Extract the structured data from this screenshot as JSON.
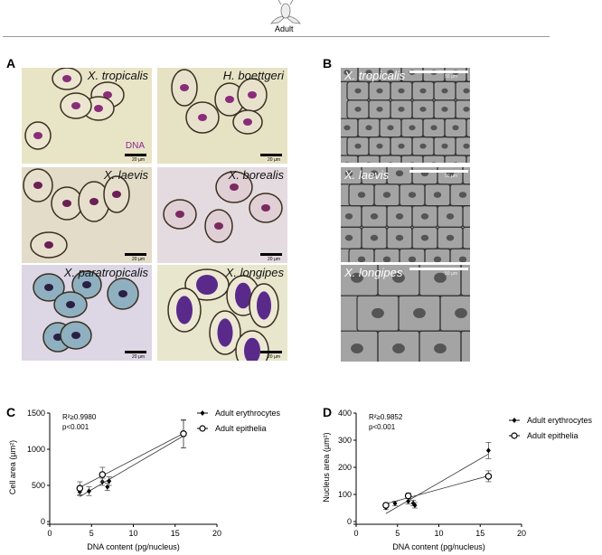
{
  "header": {
    "stage_label": "Adult",
    "icon": "frog-icon"
  },
  "panels": {
    "A": "A",
    "B": "B",
    "C": "C",
    "D": "D"
  },
  "panel_a": {
    "dna_label": "DNA",
    "dna_color": "#8b2a8f",
    "scale_bar": "20 µm",
    "images": [
      {
        "species": "X. tropicalis"
      },
      {
        "species": "H. boettgeri"
      },
      {
        "species": "X. laevis"
      },
      {
        "species": "X. borealis"
      },
      {
        "species": "X. paratropicalis"
      },
      {
        "species": "X. longipes"
      }
    ]
  },
  "panel_b": {
    "scale_bar": "50 µm",
    "images": [
      {
        "species": "X. tropicalis"
      },
      {
        "species": "X. laevis"
      },
      {
        "species": "X. longipes"
      }
    ]
  },
  "chart_data": [
    {
      "type": "scatter",
      "panel": "C",
      "xlabel": "DNA  content (pg/nucleus)",
      "ylabel": "Cell area (µm²)",
      "xlim": [
        0,
        20
      ],
      "ylim": [
        0,
        1500
      ],
      "xticks": [
        0,
        5,
        10,
        15,
        20
      ],
      "yticks": [
        0,
        500,
        1000,
        1500
      ],
      "annotations": [
        "R²≥0.9980",
        "p<0.001"
      ],
      "legend_position": "top-right",
      "grid": false,
      "series": [
        {
          "name": "Adult erythrocytes",
          "marker": "filled-diamond",
          "fit_line": true,
          "points": [
            {
              "x": 3.6,
              "y": 410,
              "err": 50
            },
            {
              "x": 4.7,
              "y": 420,
              "err": 60
            },
            {
              "x": 6.3,
              "y": 550,
              "err": 50
            },
            {
              "x": 6.9,
              "y": 480,
              "err": 50
            },
            {
              "x": 7.1,
              "y": 560,
              "err": 60
            },
            {
              "x": 16,
              "y": 1210,
              "err": 190
            }
          ]
        },
        {
          "name": "Adult epithelia",
          "marker": "open-circle",
          "fit_line": true,
          "points": [
            {
              "x": 3.6,
              "y": 460,
              "err": 90
            },
            {
              "x": 6.3,
              "y": 650,
              "err": 100
            },
            {
              "x": 16,
              "y": 1215,
              "err": 195
            }
          ]
        }
      ]
    },
    {
      "type": "scatter",
      "panel": "D",
      "xlabel": "DNA  content (pg/nucleus)",
      "ylabel": "Nucleus area (µm²)",
      "xlim": [
        0,
        20
      ],
      "ylim": [
        0,
        400
      ],
      "xticks": [
        0,
        5,
        10,
        15,
        20
      ],
      "yticks": [
        0,
        100,
        200,
        300,
        400
      ],
      "annotations": [
        "R²≥0.9852",
        "p<0.001"
      ],
      "legend_position": "top-right",
      "grid": false,
      "series": [
        {
          "name": "Adult erythrocytes",
          "marker": "filled-diamond",
          "fit_line": true,
          "points": [
            {
              "x": 3.6,
              "y": 52,
              "err": 8
            },
            {
              "x": 4.7,
              "y": 67,
              "err": 8
            },
            {
              "x": 6.3,
              "y": 75,
              "err": 10
            },
            {
              "x": 6.9,
              "y": 68,
              "err": 10
            },
            {
              "x": 7.1,
              "y": 60,
              "err": 10
            },
            {
              "x": 16,
              "y": 262,
              "err": 30
            }
          ]
        },
        {
          "name": "Adult epithelia",
          "marker": "open-circle",
          "fit_line": true,
          "points": [
            {
              "x": 3.6,
              "y": 60,
              "err": 8
            },
            {
              "x": 6.3,
              "y": 95,
              "err": 10
            },
            {
              "x": 16,
              "y": 167,
              "err": 20
            }
          ]
        }
      ]
    }
  ]
}
